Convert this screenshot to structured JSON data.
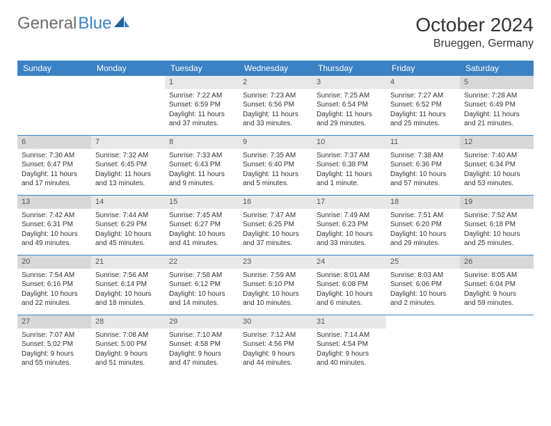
{
  "brand": {
    "text_general": "General",
    "text_blue": "Blue",
    "general_color": "#6b6b6b",
    "blue_color": "#3b82c4"
  },
  "title": "October 2024",
  "location": "Brueggen, Germany",
  "header_bg": "#3b82c4",
  "day_headers": [
    "Sunday",
    "Monday",
    "Tuesday",
    "Wednesday",
    "Thursday",
    "Friday",
    "Saturday"
  ],
  "weeks": [
    [
      null,
      null,
      {
        "n": "1",
        "sr": "Sunrise: 7:22 AM",
        "ss": "Sunset: 6:59 PM",
        "dl": "Daylight: 11 hours and 37 minutes."
      },
      {
        "n": "2",
        "sr": "Sunrise: 7:23 AM",
        "ss": "Sunset: 6:56 PM",
        "dl": "Daylight: 11 hours and 33 minutes."
      },
      {
        "n": "3",
        "sr": "Sunrise: 7:25 AM",
        "ss": "Sunset: 6:54 PM",
        "dl": "Daylight: 11 hours and 29 minutes."
      },
      {
        "n": "4",
        "sr": "Sunrise: 7:27 AM",
        "ss": "Sunset: 6:52 PM",
        "dl": "Daylight: 11 hours and 25 minutes."
      },
      {
        "n": "5",
        "sr": "Sunrise: 7:28 AM",
        "ss": "Sunset: 6:49 PM",
        "dl": "Daylight: 11 hours and 21 minutes."
      }
    ],
    [
      {
        "n": "6",
        "sr": "Sunrise: 7:30 AM",
        "ss": "Sunset: 6:47 PM",
        "dl": "Daylight: 11 hours and 17 minutes."
      },
      {
        "n": "7",
        "sr": "Sunrise: 7:32 AM",
        "ss": "Sunset: 6:45 PM",
        "dl": "Daylight: 11 hours and 13 minutes."
      },
      {
        "n": "8",
        "sr": "Sunrise: 7:33 AM",
        "ss": "Sunset: 6:43 PM",
        "dl": "Daylight: 11 hours and 9 minutes."
      },
      {
        "n": "9",
        "sr": "Sunrise: 7:35 AM",
        "ss": "Sunset: 6:40 PM",
        "dl": "Daylight: 11 hours and 5 minutes."
      },
      {
        "n": "10",
        "sr": "Sunrise: 7:37 AM",
        "ss": "Sunset: 6:38 PM",
        "dl": "Daylight: 11 hours and 1 minute."
      },
      {
        "n": "11",
        "sr": "Sunrise: 7:38 AM",
        "ss": "Sunset: 6:36 PM",
        "dl": "Daylight: 10 hours and 57 minutes."
      },
      {
        "n": "12",
        "sr": "Sunrise: 7:40 AM",
        "ss": "Sunset: 6:34 PM",
        "dl": "Daylight: 10 hours and 53 minutes."
      }
    ],
    [
      {
        "n": "13",
        "sr": "Sunrise: 7:42 AM",
        "ss": "Sunset: 6:31 PM",
        "dl": "Daylight: 10 hours and 49 minutes."
      },
      {
        "n": "14",
        "sr": "Sunrise: 7:44 AM",
        "ss": "Sunset: 6:29 PM",
        "dl": "Daylight: 10 hours and 45 minutes."
      },
      {
        "n": "15",
        "sr": "Sunrise: 7:45 AM",
        "ss": "Sunset: 6:27 PM",
        "dl": "Daylight: 10 hours and 41 minutes."
      },
      {
        "n": "16",
        "sr": "Sunrise: 7:47 AM",
        "ss": "Sunset: 6:25 PM",
        "dl": "Daylight: 10 hours and 37 minutes."
      },
      {
        "n": "17",
        "sr": "Sunrise: 7:49 AM",
        "ss": "Sunset: 6:23 PM",
        "dl": "Daylight: 10 hours and 33 minutes."
      },
      {
        "n": "18",
        "sr": "Sunrise: 7:51 AM",
        "ss": "Sunset: 6:20 PM",
        "dl": "Daylight: 10 hours and 29 minutes."
      },
      {
        "n": "19",
        "sr": "Sunrise: 7:52 AM",
        "ss": "Sunset: 6:18 PM",
        "dl": "Daylight: 10 hours and 25 minutes."
      }
    ],
    [
      {
        "n": "20",
        "sr": "Sunrise: 7:54 AM",
        "ss": "Sunset: 6:16 PM",
        "dl": "Daylight: 10 hours and 22 minutes."
      },
      {
        "n": "21",
        "sr": "Sunrise: 7:56 AM",
        "ss": "Sunset: 6:14 PM",
        "dl": "Daylight: 10 hours and 18 minutes."
      },
      {
        "n": "22",
        "sr": "Sunrise: 7:58 AM",
        "ss": "Sunset: 6:12 PM",
        "dl": "Daylight: 10 hours and 14 minutes."
      },
      {
        "n": "23",
        "sr": "Sunrise: 7:59 AM",
        "ss": "Sunset: 6:10 PM",
        "dl": "Daylight: 10 hours and 10 minutes."
      },
      {
        "n": "24",
        "sr": "Sunrise: 8:01 AM",
        "ss": "Sunset: 6:08 PM",
        "dl": "Daylight: 10 hours and 6 minutes."
      },
      {
        "n": "25",
        "sr": "Sunrise: 8:03 AM",
        "ss": "Sunset: 6:06 PM",
        "dl": "Daylight: 10 hours and 2 minutes."
      },
      {
        "n": "26",
        "sr": "Sunrise: 8:05 AM",
        "ss": "Sunset: 6:04 PM",
        "dl": "Daylight: 9 hours and 59 minutes."
      }
    ],
    [
      {
        "n": "27",
        "sr": "Sunrise: 7:07 AM",
        "ss": "Sunset: 5:02 PM",
        "dl": "Daylight: 9 hours and 55 minutes."
      },
      {
        "n": "28",
        "sr": "Sunrise: 7:08 AM",
        "ss": "Sunset: 5:00 PM",
        "dl": "Daylight: 9 hours and 51 minutes."
      },
      {
        "n": "29",
        "sr": "Sunrise: 7:10 AM",
        "ss": "Sunset: 4:58 PM",
        "dl": "Daylight: 9 hours and 47 minutes."
      },
      {
        "n": "30",
        "sr": "Sunrise: 7:12 AM",
        "ss": "Sunset: 4:56 PM",
        "dl": "Daylight: 9 hours and 44 minutes."
      },
      {
        "n": "31",
        "sr": "Sunrise: 7:14 AM",
        "ss": "Sunset: 4:54 PM",
        "dl": "Daylight: 9 hours and 40 minutes."
      },
      null,
      null
    ]
  ]
}
